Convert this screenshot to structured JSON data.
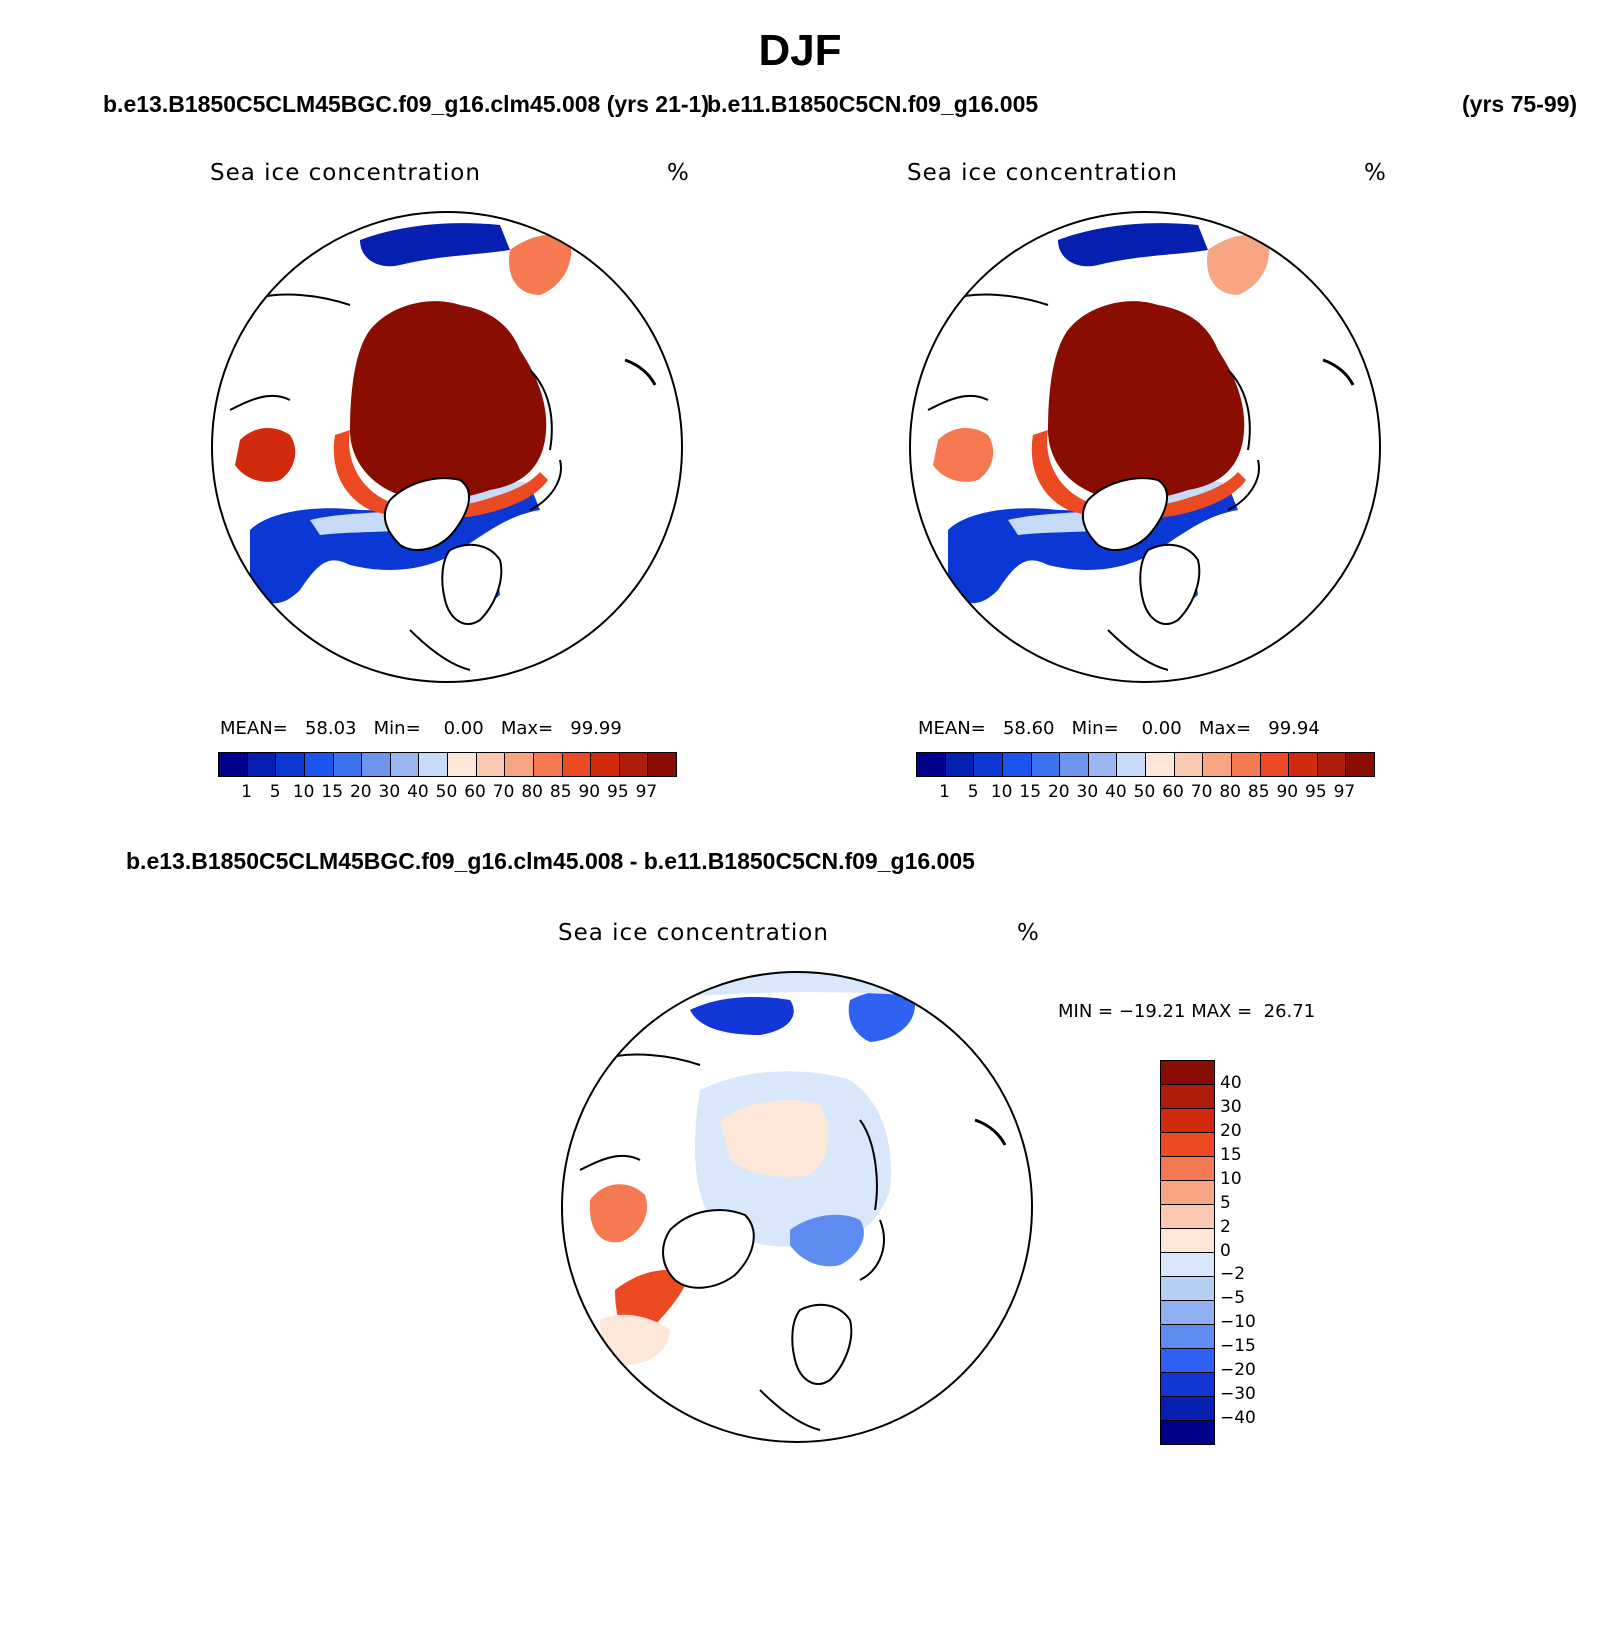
{
  "title": "DJF",
  "case_titles": {
    "left": "b.e13.B1850C5CLM45BGC.f09_g16.clm45.008 (yrs 21-1)",
    "right_case": "b.e11.B1850C5CN.f09_g16.005",
    "right_years": "(yrs 75-99)",
    "difference": "b.e13.B1850C5CLM45BGC.f09_g16.clm45.008 - b.e11.B1850C5CN.f09_g16.005"
  },
  "panels": [
    {
      "name": "Sea ice concentration",
      "units": "%",
      "stats": {
        "mean_label": "MEAN=",
        "mean": "58.03",
        "min_label": "Min=",
        "min": "0.00",
        "max_label": "Max=",
        "max": "99.99"
      }
    },
    {
      "name": "Sea ice concentration",
      "units": "%",
      "stats": {
        "mean_label": "MEAN=",
        "mean": "58.60",
        "min_label": "Min=",
        "min": "0.00",
        "max_label": "Max=",
        "max": "99.94"
      }
    },
    {
      "name": "Sea ice concentration",
      "units": "%",
      "stats": {
        "min_label": "MIN =",
        "min": "−19.21",
        "max_label": "MAX =",
        "max": "26.71"
      }
    }
  ],
  "colorbar_abs": {
    "levels": [
      "1",
      "5",
      "10",
      "15",
      "20",
      "30",
      "40",
      "50",
      "60",
      "70",
      "80",
      "85",
      "90",
      "95",
      "97"
    ],
    "colors": [
      "#00008c",
      "#0520b0",
      "#0b38d4",
      "#1a55f0",
      "#3e73f0",
      "#6e95ee",
      "#9ab6f2",
      "#c6dbf7",
      "#fde7d8",
      "#fbc9b1",
      "#f8a584",
      "#f57a52",
      "#ec4a22",
      "#d12a0c",
      "#ae1d0b",
      "#8a0d02"
    ]
  },
  "colorbar_diff": {
    "levels": [
      "40",
      "30",
      "20",
      "15",
      "10",
      "5",
      "2",
      "0",
      "−2",
      "−5",
      "−10",
      "−15",
      "−20",
      "−30",
      "−40"
    ],
    "colors": [
      "#8a0d02",
      "#ae1d0b",
      "#d12a0c",
      "#ec4a22",
      "#f57a52",
      "#f8a584",
      "#fbc9b1",
      "#fde7d8",
      "#d8e8fa",
      "#b6cff5",
      "#8fb0f0",
      "#5f8cf0",
      "#2f62f2",
      "#1236d6",
      "#0520b0",
      "#00008c"
    ]
  },
  "colors": {
    "land_outline": "#000000",
    "background": "#ffffff"
  }
}
